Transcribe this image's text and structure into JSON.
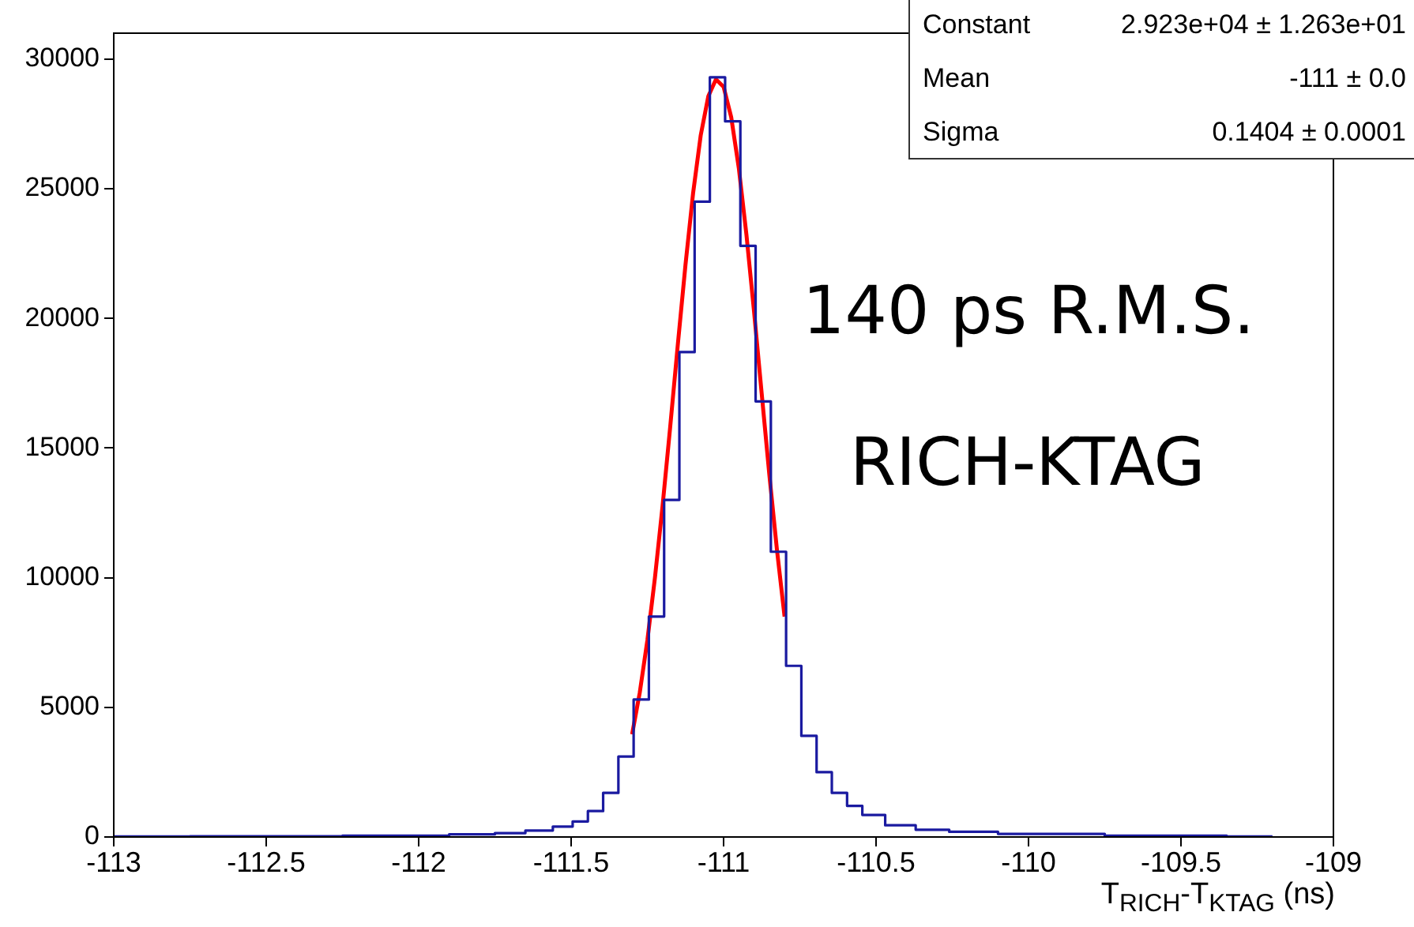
{
  "chart_data": {
    "type": "step",
    "xlabel": "T$_{RICH}$-T$_{KTAG}$ (ns)",
    "xlim": [
      -113,
      -109
    ],
    "xticks": [
      -113,
      -112.5,
      -112,
      -111.5,
      -111,
      -110.5,
      -110,
      -109.5,
      -109
    ],
    "ylim": [
      0,
      31000
    ],
    "yticks": [
      0,
      5000,
      10000,
      15000,
      20000,
      25000,
      30000
    ],
    "grid": false,
    "legend": false,
    "marker": "none",
    "annotations": [
      "Constant",
      "2.923e+04 ± 1.263e+01",
      "Mean",
      "-111 ± 0.0",
      "Sigma",
      "0.1404 ± 0.0001",
      "140 ps R.M.S.",
      "RICH-KTAG"
    ],
    "series": [
      {
        "color": "#1a1aa0",
        "x": [
          -113,
          -112.5,
          -112,
          -111.8,
          -111.7,
          -111.6,
          -111.52,
          -111.47,
          -111.42,
          -111.37,
          -111.32,
          -111.27,
          -111.22,
          -111.17,
          -111.12,
          -111.07,
          -111.02,
          -110.97,
          -110.92,
          -110.87,
          -110.82,
          -110.77,
          -110.72,
          -110.67,
          -110.62,
          -110.57,
          -110.52,
          -110.42,
          -110.32,
          -110.2,
          -110,
          -109.5,
          -109.2
        ],
        "values": [
          20,
          30,
          50,
          100,
          150,
          250,
          400,
          600,
          1000,
          1700,
          3100,
          5300,
          8500,
          13000,
          18700,
          24500,
          29300,
          27600,
          22800,
          16800,
          11000,
          6600,
          3900,
          2500,
          1700,
          1200,
          850,
          450,
          280,
          200,
          120,
          50,
          20
        ]
      },
      {
        "type": "line",
        "color": "#ff0000",
        "x": [
          -111.3,
          -111.275,
          -111.25,
          -111.225,
          -111.2,
          -111.175,
          -111.15,
          -111.125,
          -111.1,
          -111.075,
          -111.05,
          -111.025,
          -111,
          -110.975,
          -110.95,
          -110.925,
          -110.9,
          -110.875,
          -110.85,
          -110.825,
          -110.8
        ],
        "values": [
          3960,
          5560,
          7580,
          10010,
          12780,
          15830,
          19000,
          22060,
          24830,
          27060,
          28570,
          29220,
          28930,
          27760,
          25790,
          23220,
          20250,
          17100,
          13980,
          11080,
          8500
        ]
      }
    ]
  }
}
